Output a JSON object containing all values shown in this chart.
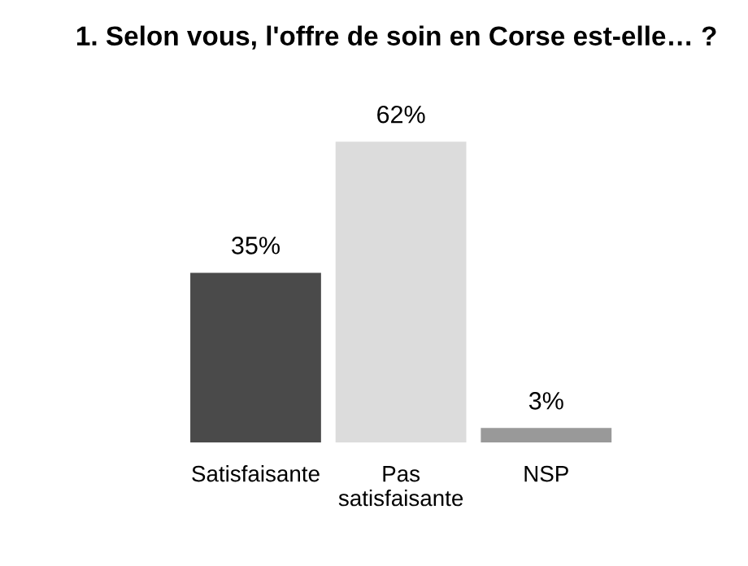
{
  "chart_data": {
    "type": "bar",
    "title": "1. Selon vous, l'offre de soin en Corse est-elle… ?",
    "categories": [
      "Satisfaisante",
      "Pas\nsatisfaisante",
      "NSP"
    ],
    "values": [
      35,
      62,
      3
    ],
    "colors": [
      "#4a4a4a",
      "#dcdcdc",
      "#999999"
    ],
    "value_labels": [
      "35%",
      "62%",
      "3%"
    ],
    "grid": false,
    "legend": false
  }
}
